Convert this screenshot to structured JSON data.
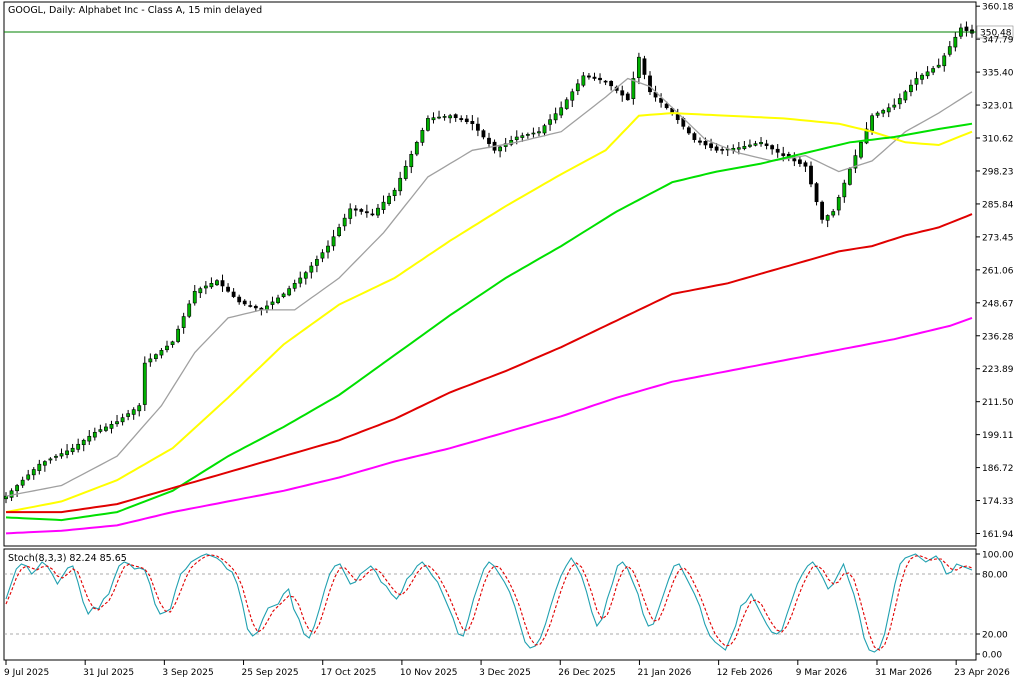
{
  "header": {
    "symbol_title": "GOOGL, Daily:  Alphabet Inc - Class A, 15 min delayed"
  },
  "price_marker": {
    "value_label": "350.48",
    "value": 350.48,
    "line_color": "#008000"
  },
  "colors": {
    "candle_body": "#00b000",
    "candle_wick": "#000000",
    "ma_gray": "#a0a0a0",
    "ma_yellow": "#ffff00",
    "ma_green": "#00e000",
    "ma_red": "#e00000",
    "ma_magenta": "#ff00ff",
    "stoch_main": "#20a0b0",
    "stoch_signal": "#e00000"
  },
  "chart_data": [
    {
      "type": "candlestick",
      "title": "GOOGL, Daily:  Alphabet Inc - Class A, 15 min delayed",
      "y_tick_labels": [
        "360.18",
        "347.79",
        "335.40",
        "323.01",
        "310.62",
        "298.23",
        "285.84",
        "273.45",
        "261.06",
        "248.67",
        "236.28",
        "223.89",
        "211.50",
        "199.11",
        "186.72",
        "174.33",
        "161.94"
      ],
      "ylim": [
        158,
        361
      ],
      "x_tick_labels": [
        "9 Jul 2025",
        "31 Jul 2025",
        "3 Sep 2025",
        "25 Sep 2025",
        "17 Oct 2025",
        "10 Nov 2025",
        "3 Dec 2025",
        "26 Dec 2025",
        "21 Jan 2026",
        "12 Feb 2026",
        "9 Mar 2026",
        "31 Mar 2026",
        "23 Apr 2026"
      ],
      "close_anchors": [
        [
          0,
          176
        ],
        [
          6,
          188
        ],
        [
          12,
          194
        ],
        [
          16,
          200
        ],
        [
          20,
          204
        ],
        [
          24,
          210
        ],
        [
          25,
          226
        ],
        [
          30,
          234
        ],
        [
          34,
          253
        ],
        [
          38,
          257
        ],
        [
          42,
          249
        ],
        [
          46,
          246
        ],
        [
          50,
          252
        ],
        [
          54,
          260
        ],
        [
          58,
          270
        ],
        [
          62,
          284
        ],
        [
          66,
          282
        ],
        [
          70,
          291
        ],
        [
          72,
          300
        ],
        [
          76,
          318
        ],
        [
          80,
          319
        ],
        [
          84,
          316
        ],
        [
          88,
          306
        ],
        [
          92,
          311
        ],
        [
          96,
          313
        ],
        [
          100,
          322
        ],
        [
          104,
          334
        ],
        [
          108,
          332
        ],
        [
          112,
          325
        ],
        [
          114,
          341
        ],
        [
          116,
          328
        ],
        [
          120,
          320
        ],
        [
          124,
          310
        ],
        [
          128,
          306
        ],
        [
          132,
          307
        ],
        [
          136,
          309
        ],
        [
          140,
          304
        ],
        [
          144,
          300
        ],
        [
          147,
          280
        ],
        [
          149,
          283
        ],
        [
          152,
          299
        ],
        [
          156,
          319
        ],
        [
          160,
          323
        ],
        [
          164,
          333
        ],
        [
          168,
          338
        ],
        [
          172,
          352
        ],
        [
          174,
          350
        ]
      ],
      "series": [
        {
          "name": "",
          "color": "#a0a0a0",
          "anchors": [
            [
              0,
              176
            ],
            [
              10,
              180
            ],
            [
              20,
              191
            ],
            [
              28,
              210
            ],
            [
              34,
              230
            ],
            [
              40,
              243
            ],
            [
              46,
              246
            ],
            [
              52,
              246
            ],
            [
              60,
              258
            ],
            [
              68,
              275
            ],
            [
              76,
              296
            ],
            [
              84,
              306
            ],
            [
              92,
              309
            ],
            [
              100,
              313
            ],
            [
              108,
              326
            ],
            [
              112,
              333
            ],
            [
              116,
              330
            ],
            [
              120,
              322
            ],
            [
              126,
              310
            ],
            [
              132,
              305
            ],
            [
              138,
              302
            ],
            [
              144,
              304
            ],
            [
              150,
              298
            ],
            [
              156,
              302
            ],
            [
              162,
              313
            ],
            [
              168,
              320
            ],
            [
              174,
              328
            ]
          ]
        },
        {
          "name": "",
          "color": "#ffff00",
          "anchors": [
            [
              0,
              170
            ],
            [
              10,
              174
            ],
            [
              20,
              182
            ],
            [
              30,
              194
            ],
            [
              40,
              213
            ],
            [
              50,
              233
            ],
            [
              60,
              248
            ],
            [
              70,
              258
            ],
            [
              80,
              272
            ],
            [
              90,
              285
            ],
            [
              100,
              297
            ],
            [
              108,
              306
            ],
            [
              114,
              319
            ],
            [
              120,
              320
            ],
            [
              130,
              319
            ],
            [
              140,
              318
            ],
            [
              150,
              316
            ],
            [
              156,
              313
            ],
            [
              162,
              309
            ],
            [
              168,
              308
            ],
            [
              174,
              313
            ]
          ]
        },
        {
          "name": "",
          "color": "#00e000",
          "anchors": [
            [
              0,
              168
            ],
            [
              10,
              167
            ],
            [
              20,
              170
            ],
            [
              30,
              178
            ],
            [
              40,
              191
            ],
            [
              50,
              202
            ],
            [
              60,
              214
            ],
            [
              70,
              229
            ],
            [
              80,
              244
            ],
            [
              90,
              258
            ],
            [
              100,
              270
            ],
            [
              110,
              283
            ],
            [
              120,
              294
            ],
            [
              128,
              298
            ],
            [
              136,
              301
            ],
            [
              144,
              305
            ],
            [
              152,
              309
            ],
            [
              160,
              311
            ],
            [
              168,
              314
            ],
            [
              174,
              316
            ]
          ]
        },
        {
          "name": "",
          "color": "#e00000",
          "anchors": [
            [
              0,
              170
            ],
            [
              10,
              170
            ],
            [
              20,
              173
            ],
            [
              30,
              179
            ],
            [
              40,
              185
            ],
            [
              50,
              191
            ],
            [
              60,
              197
            ],
            [
              70,
              205
            ],
            [
              80,
              215
            ],
            [
              90,
              223
            ],
            [
              100,
              232
            ],
            [
              110,
              242
            ],
            [
              120,
              252
            ],
            [
              130,
              256
            ],
            [
              140,
              262
            ],
            [
              150,
              268
            ],
            [
              156,
              270
            ],
            [
              162,
              274
            ],
            [
              168,
              277
            ],
            [
              174,
              282
            ]
          ]
        },
        {
          "name": "",
          "color": "#ff00ff",
          "anchors": [
            [
              0,
              162
            ],
            [
              10,
              163
            ],
            [
              20,
              165
            ],
            [
              30,
              170
            ],
            [
              40,
              174
            ],
            [
              50,
              178
            ],
            [
              60,
              183
            ],
            [
              70,
              189
            ],
            [
              80,
              194
            ],
            [
              90,
              200
            ],
            [
              100,
              206
            ],
            [
              110,
              213
            ],
            [
              120,
              219
            ],
            [
              130,
              223
            ],
            [
              140,
              227
            ],
            [
              150,
              231
            ],
            [
              160,
              235
            ],
            [
              170,
              240
            ],
            [
              174,
              243
            ]
          ]
        }
      ]
    },
    {
      "type": "line",
      "title": "Stoch(8,3,3) 82.24 85.65",
      "y_tick_labels": [
        "100.00",
        "80.00",
        "20.00",
        "0.00"
      ],
      "ylim": [
        -4,
        103
      ],
      "levels": [
        80,
        20
      ],
      "series": [
        {
          "name": "Stoch(8,3,3)",
          "color": "#20a0b0",
          "values": [
            55,
            70,
            85,
            90,
            88,
            80,
            85,
            92,
            88,
            80,
            70,
            78,
            86,
            88,
            72,
            52,
            40,
            47,
            45,
            55,
            60,
            75,
            88,
            92,
            90,
            85,
            86,
            84,
            70,
            50,
            40,
            42,
            45,
            64,
            80,
            85,
            92,
            95,
            98,
            100,
            98,
            96,
            92,
            85,
            82,
            70,
            50,
            25,
            18,
            22,
            35,
            46,
            48,
            50,
            60,
            65,
            45,
            35,
            20,
            16,
            28,
            45,
            64,
            80,
            88,
            90,
            80,
            70,
            72,
            80,
            84,
            88,
            82,
            72,
            68,
            60,
            55,
            62,
            75,
            80,
            88,
            92,
            86,
            78,
            72,
            60,
            48,
            36,
            20,
            18,
            35,
            55,
            70,
            85,
            92,
            88,
            80,
            72,
            62,
            48,
            30,
            12,
            6,
            8,
            16,
            30,
            48,
            64,
            78,
            88,
            96,
            88,
            78,
            62,
            42,
            28,
            35,
            55,
            70,
            88,
            92,
            85,
            72,
            60,
            40,
            28,
            30,
            45,
            60,
            75,
            88,
            90,
            80,
            70,
            60,
            48,
            30,
            18,
            12,
            8,
            4,
            16,
            28,
            48,
            52,
            60,
            50,
            40,
            30,
            22,
            20,
            24,
            40,
            55,
            70,
            80,
            88,
            92,
            85,
            76,
            65,
            70,
            80,
            90,
            74,
            60,
            40,
            16,
            4,
            2,
            6,
            20,
            45,
            70,
            90,
            96,
            98,
            100,
            96,
            92,
            95,
            98,
            92,
            80,
            82,
            90,
            88,
            86,
            84
          ]
        },
        {
          "name": "",
          "color": "#e00000",
          "values": [
            50,
            62,
            76,
            85,
            88,
            86,
            84,
            87,
            88,
            85,
            78,
            76,
            80,
            85,
            82,
            68,
            55,
            46,
            44,
            49,
            53,
            63,
            76,
            87,
            90,
            88,
            87,
            85,
            78,
            64,
            51,
            43,
            42,
            51,
            63,
            76,
            86,
            91,
            95,
            98,
            99,
            98,
            95,
            91,
            86,
            79,
            67,
            48,
            31,
            22,
            25,
            34,
            43,
            48,
            53,
            58,
            57,
            49,
            34,
            24,
            21,
            30,
            46,
            63,
            77,
            86,
            86,
            80,
            74,
            74,
            79,
            84,
            85,
            81,
            74,
            67,
            61,
            59,
            64,
            72,
            81,
            87,
            89,
            85,
            79,
            70,
            60,
            48,
            35,
            24,
            24,
            36,
            53,
            70,
            82,
            88,
            87,
            80,
            71,
            60,
            47,
            30,
            16,
            9,
            10,
            18,
            31,
            47,
            63,
            77,
            87,
            91,
            87,
            76,
            61,
            44,
            35,
            39,
            53,
            71,
            83,
            88,
            83,
            72,
            57,
            43,
            33,
            34,
            45,
            60,
            74,
            84,
            86,
            80,
            70,
            59,
            46,
            32,
            20,
            13,
            8,
            9,
            16,
            31,
            43,
            53,
            54,
            50,
            40,
            31,
            24,
            22,
            28,
            40,
            55,
            68,
            79,
            87,
            88,
            84,
            75,
            70,
            72,
            80,
            81,
            75,
            58,
            39,
            20,
            7,
            4,
            9,
            24,
            45,
            68,
            85,
            95,
            98,
            98,
            96,
            94,
            95,
            95,
            90,
            85,
            84,
            87,
            88,
            86
          ]
        }
      ],
      "x_tick_labels": [
        "9 Jul 2025",
        "31 Jul 2025",
        "3 Sep 2025",
        "25 Sep 2025",
        "17 Oct 2025",
        "10 Nov 2025",
        "3 Dec 2025",
        "26 Dec 2025",
        "21 Jan 2026",
        "12 Feb 2026",
        "9 Mar 2026",
        "31 Mar 2026",
        "23 Apr 2026"
      ]
    }
  ]
}
